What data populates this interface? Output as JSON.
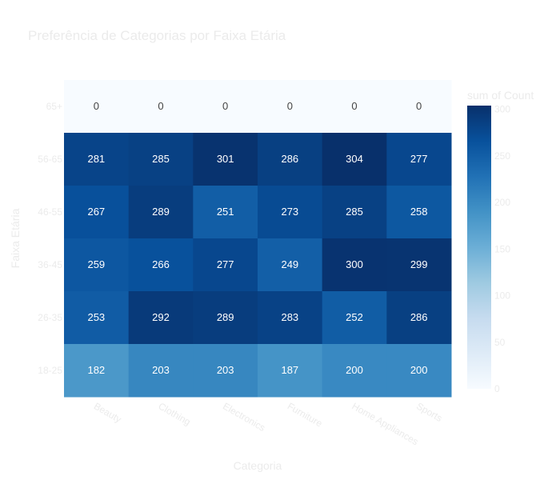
{
  "chart_data": {
    "type": "heatmap",
    "title": "Preferência de Categorias por Faixa Etária",
    "xlabel": "Categoria",
    "ylabel": "Faixa Etária",
    "x_categories": [
      "Beauty",
      "Clothing",
      "Electronics",
      "Furniture",
      "Home Appliances",
      "Sports"
    ],
    "y_categories": [
      "65+",
      "56-65",
      "46-55",
      "36-45",
      "26-35",
      "18-25"
    ],
    "z": [
      [
        0,
        0,
        0,
        0,
        0,
        0
      ],
      [
        281,
        285,
        301,
        286,
        304,
        277
      ],
      [
        267,
        289,
        251,
        273,
        285,
        258
      ],
      [
        259,
        266,
        277,
        249,
        300,
        299
      ],
      [
        253,
        292,
        289,
        283,
        252,
        286
      ],
      [
        182,
        203,
        203,
        187,
        200,
        200
      ]
    ],
    "colorbar": {
      "title": "sum of Count",
      "range": [
        0,
        304
      ],
      "ticks": [
        0,
        50,
        100,
        150,
        200,
        250,
        300
      ]
    },
    "colorscale": "Blues",
    "colors": {
      "title_text": "#ebebeb",
      "axis_text": "#ebebeb",
      "cell_text_dark": "#444444",
      "cell_text_light": "#ffffff"
    }
  }
}
